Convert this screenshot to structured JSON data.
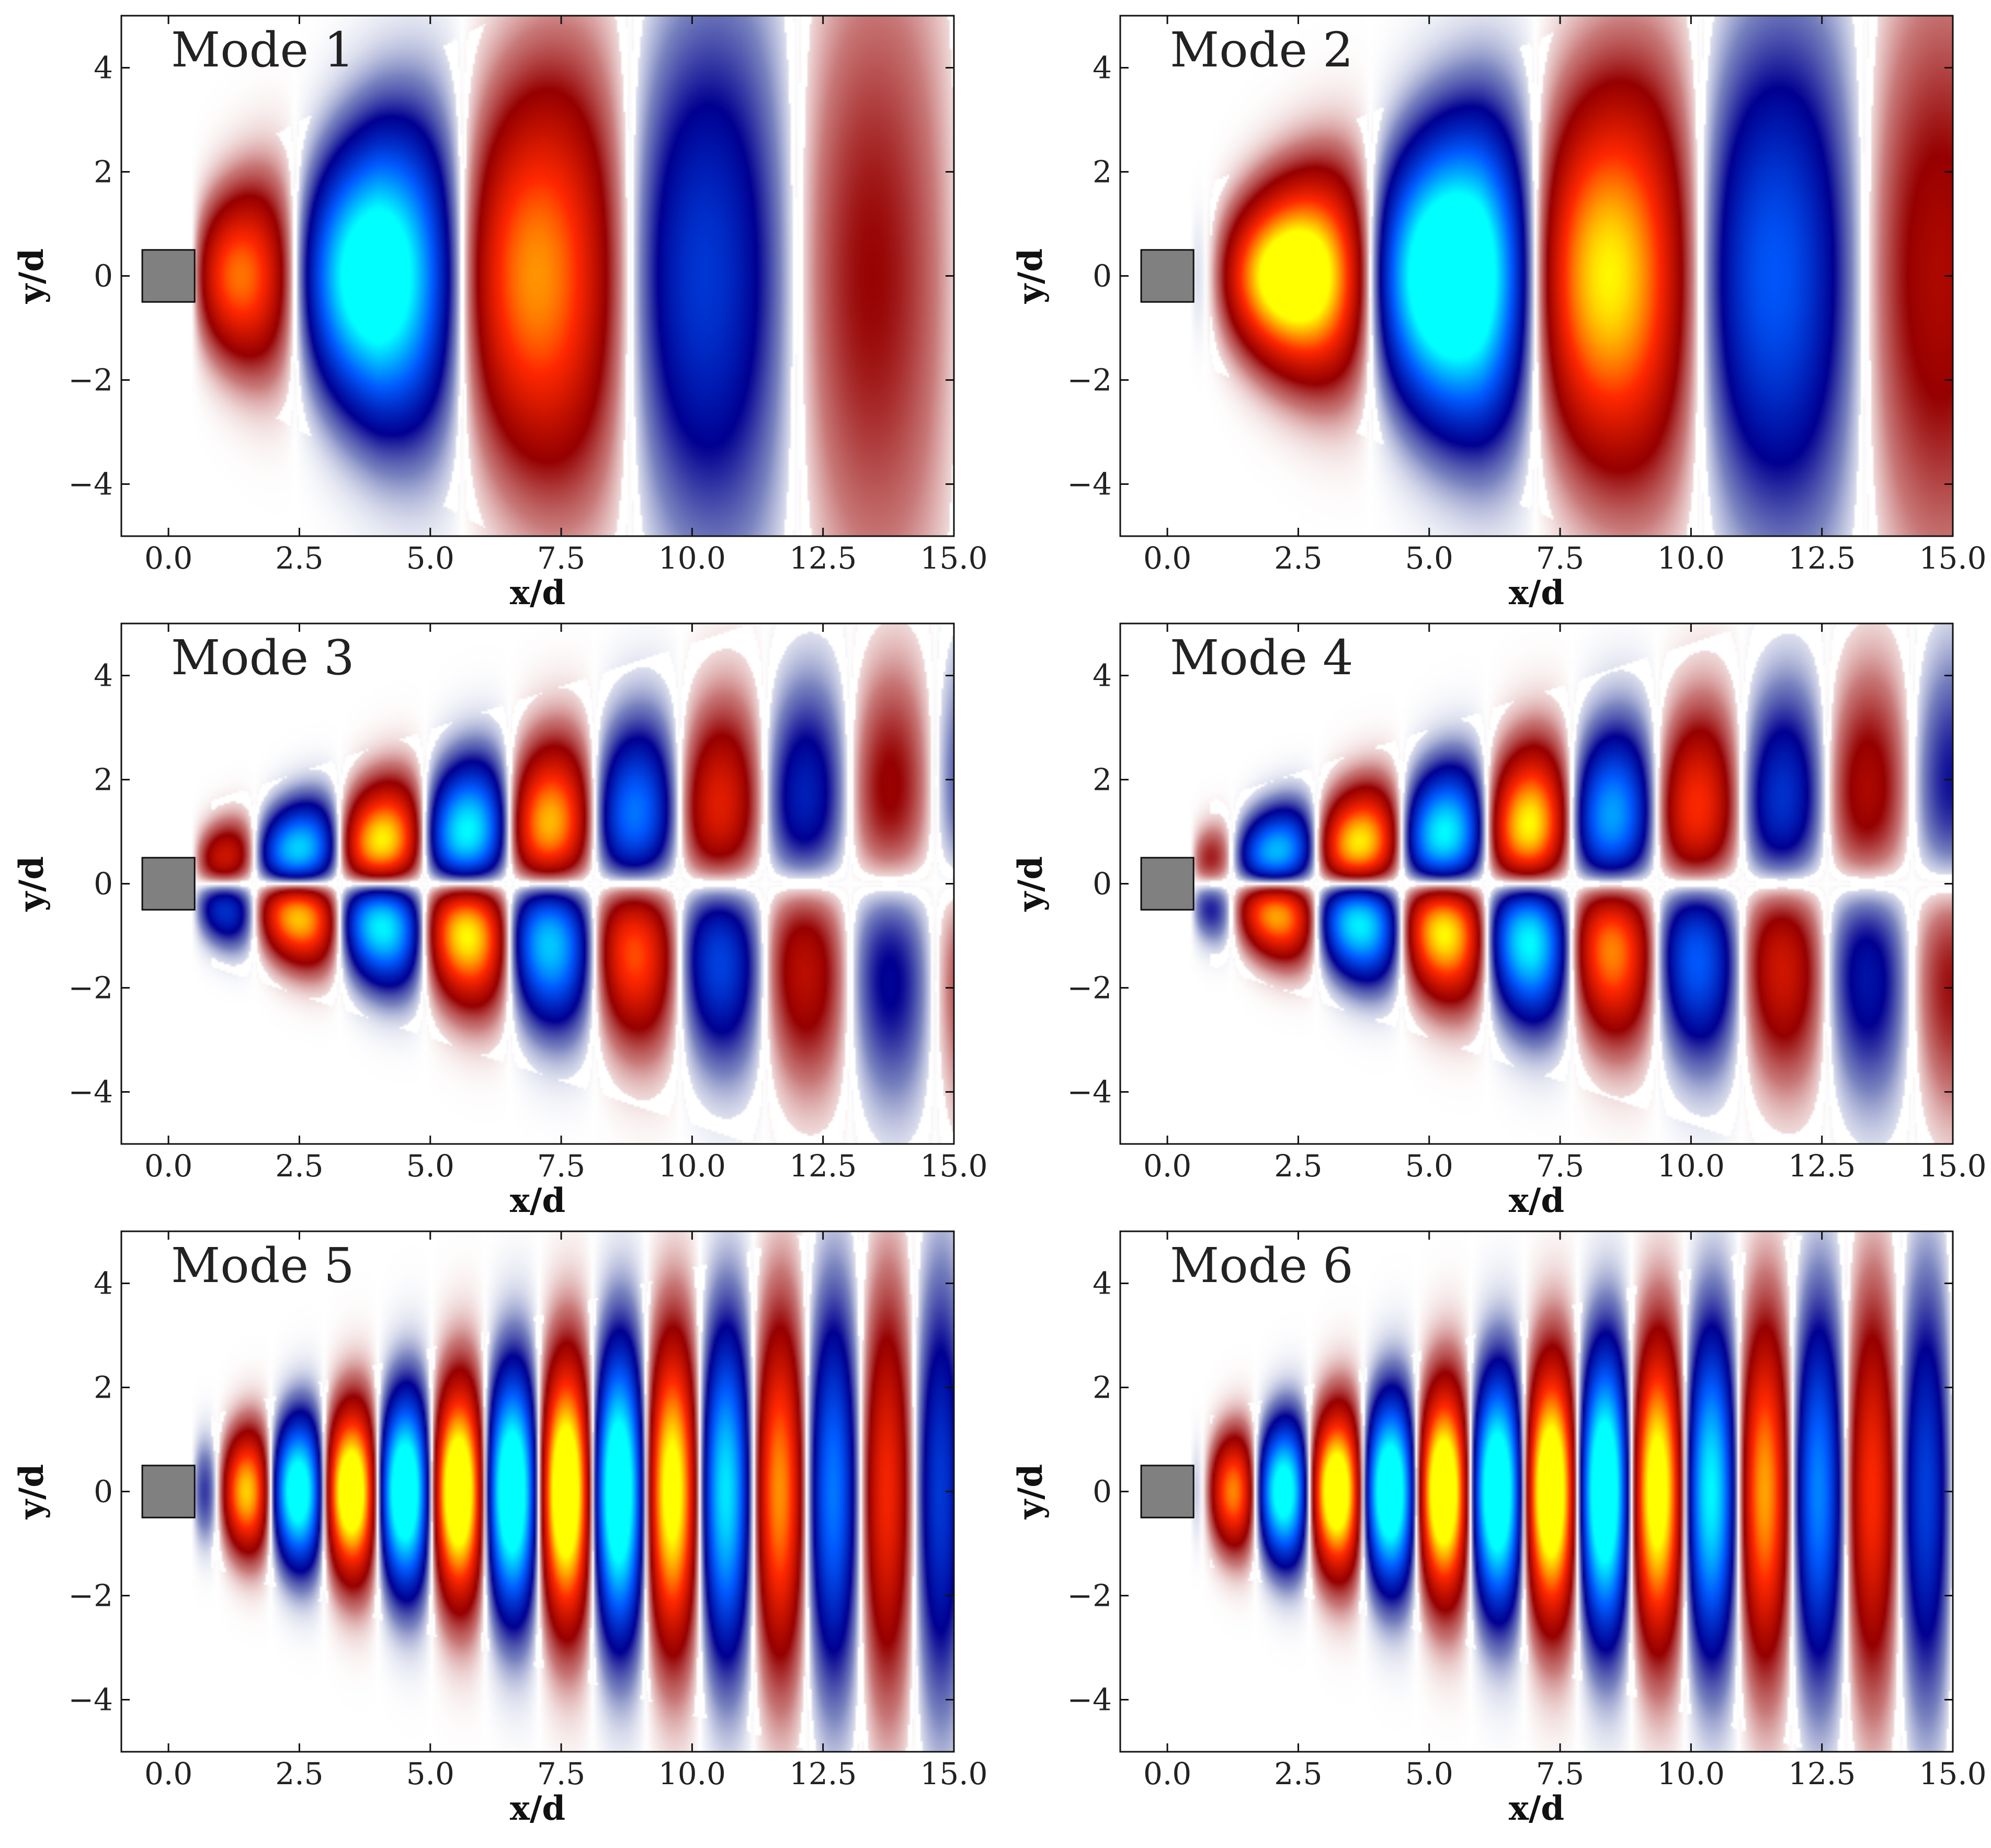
{
  "chart_data": {
    "type": "heatmap",
    "colormap": "diverging: dark red / red / yellow (positive), white (zero), dark blue / blue / cyan (negative)",
    "grid": false,
    "obstacle": {
      "shape": "square",
      "x": [
        -0.5,
        0.5
      ],
      "y": [
        -0.5,
        0.5
      ],
      "color": "#808080"
    },
    "panels": [
      {
        "title": "Mode 1",
        "xlabel": "x/d",
        "ylabel": "y/d",
        "xlim": [
          -0.9,
          15.0
        ],
        "ylim": [
          -5,
          5
        ],
        "xticks": [
          "0.0",
          "2.5",
          "5.0",
          "7.5",
          "10.0",
          "12.5",
          "15.0"
        ],
        "yticks": [
          "4",
          "2",
          "0",
          "−2",
          "−4"
        ],
        "symmetry": "symmetric",
        "wavelength": 6.4,
        "phase": 0.8,
        "decay_start": 4.0,
        "width_base": 0.75,
        "width_growth": 0.24,
        "amp": 1.35
      },
      {
        "title": "Mode 2",
        "xlabel": "x/d",
        "ylabel": "y/d",
        "xlim": [
          -0.9,
          15.0
        ],
        "ylim": [
          -5,
          5
        ],
        "xticks": [
          "0.0",
          "2.5",
          "5.0",
          "7.5",
          "10.0",
          "12.5",
          "15.0"
        ],
        "yticks": [
          "4",
          "2",
          "0",
          "−2",
          "−4"
        ],
        "symmetry": "symmetric",
        "wavelength": 6.3,
        "phase": 2.3,
        "decay_start": 6.0,
        "width_base": 0.65,
        "width_growth": 0.2,
        "amp": 1.5
      },
      {
        "title": "Mode 3",
        "xlabel": "x/d",
        "ylabel": "y/d",
        "xlim": [
          -0.9,
          15.0
        ],
        "ylim": [
          -5,
          5
        ],
        "xticks": [
          "0.0",
          "2.5",
          "5.0",
          "7.5",
          "10.0",
          "12.5",
          "15.0"
        ],
        "yticks": [
          "4",
          "2",
          "0",
          "−2",
          "−4"
        ],
        "symmetry": "antisymmetric",
        "wavelength": 3.25,
        "phase": 1.6,
        "decay_start": 6.5,
        "width_base": 0.6,
        "width_growth": 0.15,
        "amp": 1.45
      },
      {
        "title": "Mode 4",
        "xlabel": "x/d",
        "ylabel": "y/d",
        "xlim": [
          -0.9,
          15.0
        ],
        "ylim": [
          -5,
          5
        ],
        "xticks": [
          "0.0",
          "2.5",
          "5.0",
          "7.5",
          "10.0",
          "12.5",
          "15.0"
        ],
        "yticks": [
          "4",
          "2",
          "0",
          "−2",
          "−4"
        ],
        "symmetry": "antisymmetric",
        "wavelength": 3.25,
        "phase": 0.8,
        "decay_start": 7.0,
        "width_base": 0.6,
        "width_growth": 0.15,
        "amp": 1.45
      },
      {
        "title": "Mode 5",
        "xlabel": "x/d",
        "ylabel": "y/d",
        "xlim": [
          -0.9,
          15.0
        ],
        "ylim": [
          -5,
          5
        ],
        "xticks": [
          "0.0",
          "2.5",
          "5.0",
          "7.5",
          "10.0",
          "12.5",
          "15.0"
        ],
        "yticks": [
          "4",
          "2",
          "0",
          "−2",
          "−4"
        ],
        "symmetry": "symmetric",
        "wavelength": 2.05,
        "phase": 4.4,
        "decay_start": 8.5,
        "width_base": 0.55,
        "width_growth": 0.14,
        "amp": 1.35
      },
      {
        "title": "Mode 6",
        "xlabel": "x/d",
        "ylabel": "y/d",
        "xlim": [
          -0.9,
          15.0
        ],
        "ylim": [
          -5,
          5
        ],
        "xticks": [
          "0.0",
          "2.5",
          "5.0",
          "7.5",
          "10.0",
          "12.5",
          "15.0"
        ],
        "yticks": [
          "4",
          "2",
          "0",
          "−2",
          "−4"
        ],
        "symmetry": "symmetric",
        "wavelength": 2.05,
        "phase": 3.6,
        "decay_start": 8.5,
        "width_base": 0.55,
        "width_growth": 0.14,
        "amp": 1.35
      }
    ]
  }
}
